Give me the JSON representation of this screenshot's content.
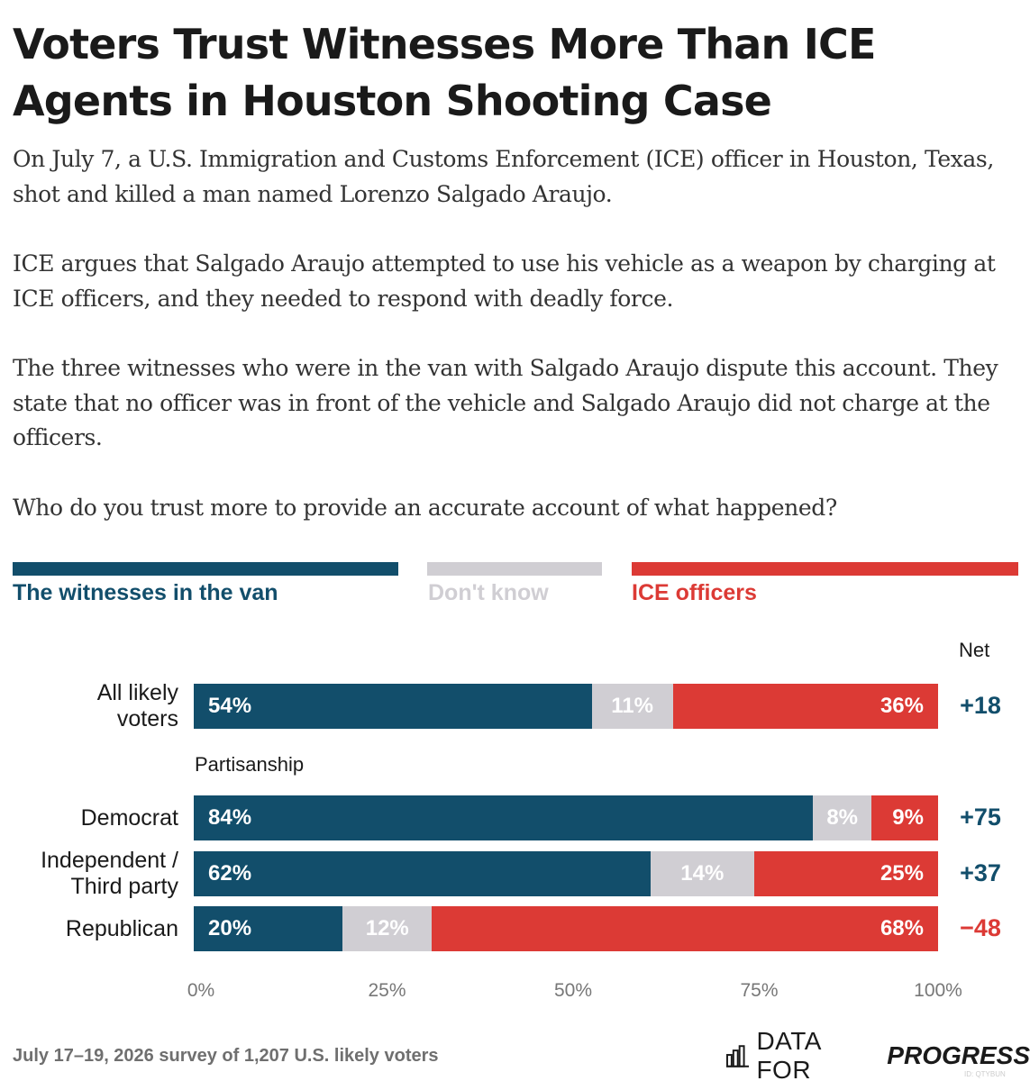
{
  "title": "Voters Trust Witnesses More Than ICE Agents in Houston Shooting Case",
  "paragraphs": [
    "On July 7, a U.S. Immigration and Customs Enforcement (ICE) officer in Houston, Texas, shot and killed a man named Lorenzo Salgado Araujo.",
    "ICE argues that Salgado Araujo attempted to use his vehicle as a weapon by charging at ICE officers, and they needed to respond with deadly force.",
    "The three witnesses who were in the van with Salgado Araujo dispute this account. They state that no officer was in front of the vehicle and Salgado Araujo did not charge at the officers.",
    "Who do you trust more to provide an accurate account of what happened?"
  ],
  "colors": {
    "witnesses": "#124e6b",
    "dont_know": "#d0ced3",
    "ice": "#dc3a35"
  },
  "chart_data": {
    "type": "bar",
    "orientation": "horizontal-stacked",
    "series": [
      {
        "name": "The witnesses in the van",
        "values": [
          54,
          84,
          62,
          20
        ]
      },
      {
        "name": "Don't know",
        "values": [
          11,
          8,
          14,
          12
        ]
      },
      {
        "name": "ICE officers",
        "values": [
          36,
          9,
          25,
          68
        ]
      }
    ],
    "categories": [
      "All likely voters",
      "Democrat",
      "Independent / Third party",
      "Republican"
    ],
    "category_display": [
      "All likely\nvoters",
      "Democrat",
      "Independent /\nThird party",
      "Republican"
    ],
    "labels": [
      [
        "54%",
        "11%",
        "36%"
      ],
      [
        "84%",
        "8%",
        "9%"
      ],
      [
        "62%",
        "14%",
        "25%"
      ],
      [
        "20%",
        "12%",
        "68%"
      ]
    ],
    "net_header": "Net",
    "net": [
      "+18",
      "+75",
      "+37",
      "−48"
    ],
    "group_label": "Partisanship",
    "xlim": [
      0,
      100
    ],
    "xticks": [
      "0%",
      "25%",
      "50%",
      "75%",
      "100%"
    ],
    "legend_position": "top"
  },
  "footnote": "July 17–19, 2026 survey of 1,207 U.S. likely voters",
  "logo": {
    "text_regular": "DATA FOR",
    "text_bold": "PROGRESS",
    "icon": "bar-chart-icon"
  },
  "chart_id": "ID: QTYBUN"
}
